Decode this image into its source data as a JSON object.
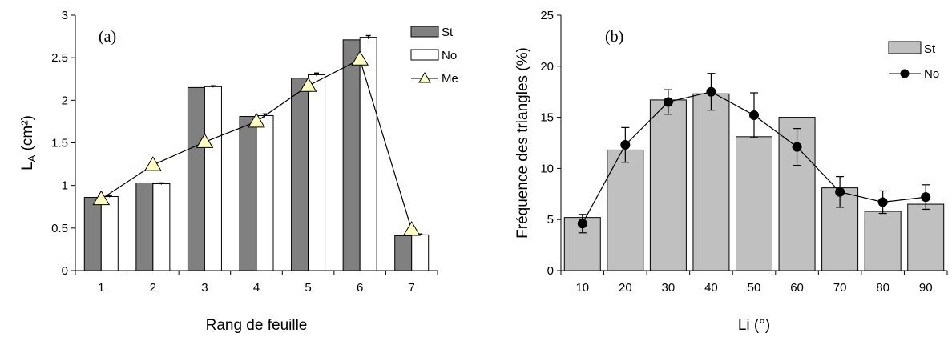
{
  "chart_data": [
    {
      "type": "bar",
      "panel_label": "(a)",
      "xlabel": "Rang de feuille",
      "ylabel_main": "L",
      "ylabel_sub": "A",
      "ylabel_unit": " (cm²)",
      "categories": [
        "1",
        "2",
        "3",
        "4",
        "5",
        "6",
        "7"
      ],
      "ylim": [
        0,
        3
      ],
      "yticks": [
        "0",
        "0.5",
        "1",
        "1.5",
        "2",
        "2.5",
        "3"
      ],
      "grid": false,
      "legend_position": "top-right",
      "series": [
        {
          "name": "St",
          "kind": "bar",
          "color": "#808080",
          "values": [
            0.86,
            1.03,
            2.15,
            1.81,
            2.26,
            2.71,
            0.41
          ]
        },
        {
          "name": "No",
          "kind": "bar",
          "color": "#ffffff",
          "values": [
            0.87,
            1.02,
            2.16,
            1.82,
            2.3,
            2.74,
            0.42
          ],
          "errors": [
            0.01,
            0.01,
            0.01,
            0.02,
            0.02,
            0.02,
            0.01
          ]
        },
        {
          "name": "Me",
          "kind": "line",
          "marker": "triangle",
          "color": "#ffffc0",
          "values": [
            0.84,
            1.24,
            1.51,
            1.75,
            2.17,
            2.48,
            0.48
          ]
        }
      ]
    },
    {
      "type": "bar",
      "panel_label": "(b)",
      "xlabel": "Li (°)",
      "ylabel": "Fréquence des triangles (%)",
      "categories": [
        "10",
        "20",
        "30",
        "40",
        "50",
        "60",
        "70",
        "80",
        "90"
      ],
      "ylim": [
        0,
        25
      ],
      "yticks": [
        "0",
        "5",
        "10",
        "15",
        "20",
        "25"
      ],
      "grid": false,
      "legend_position": "top-right",
      "series": [
        {
          "name": "St",
          "kind": "bar",
          "color": "#c0c0c0",
          "values": [
            5.2,
            11.8,
            16.7,
            17.3,
            13.1,
            15.0,
            8.1,
            5.8,
            6.5
          ]
        },
        {
          "name": "No",
          "kind": "line",
          "marker": "circle",
          "color": "#000000",
          "values": [
            4.6,
            12.3,
            16.5,
            17.5,
            15.2,
            12.1,
            7.7,
            6.7,
            7.2
          ],
          "errors": [
            0.9,
            1.7,
            1.2,
            1.8,
            2.2,
            1.8,
            1.5,
            1.1,
            1.2
          ]
        }
      ]
    }
  ]
}
